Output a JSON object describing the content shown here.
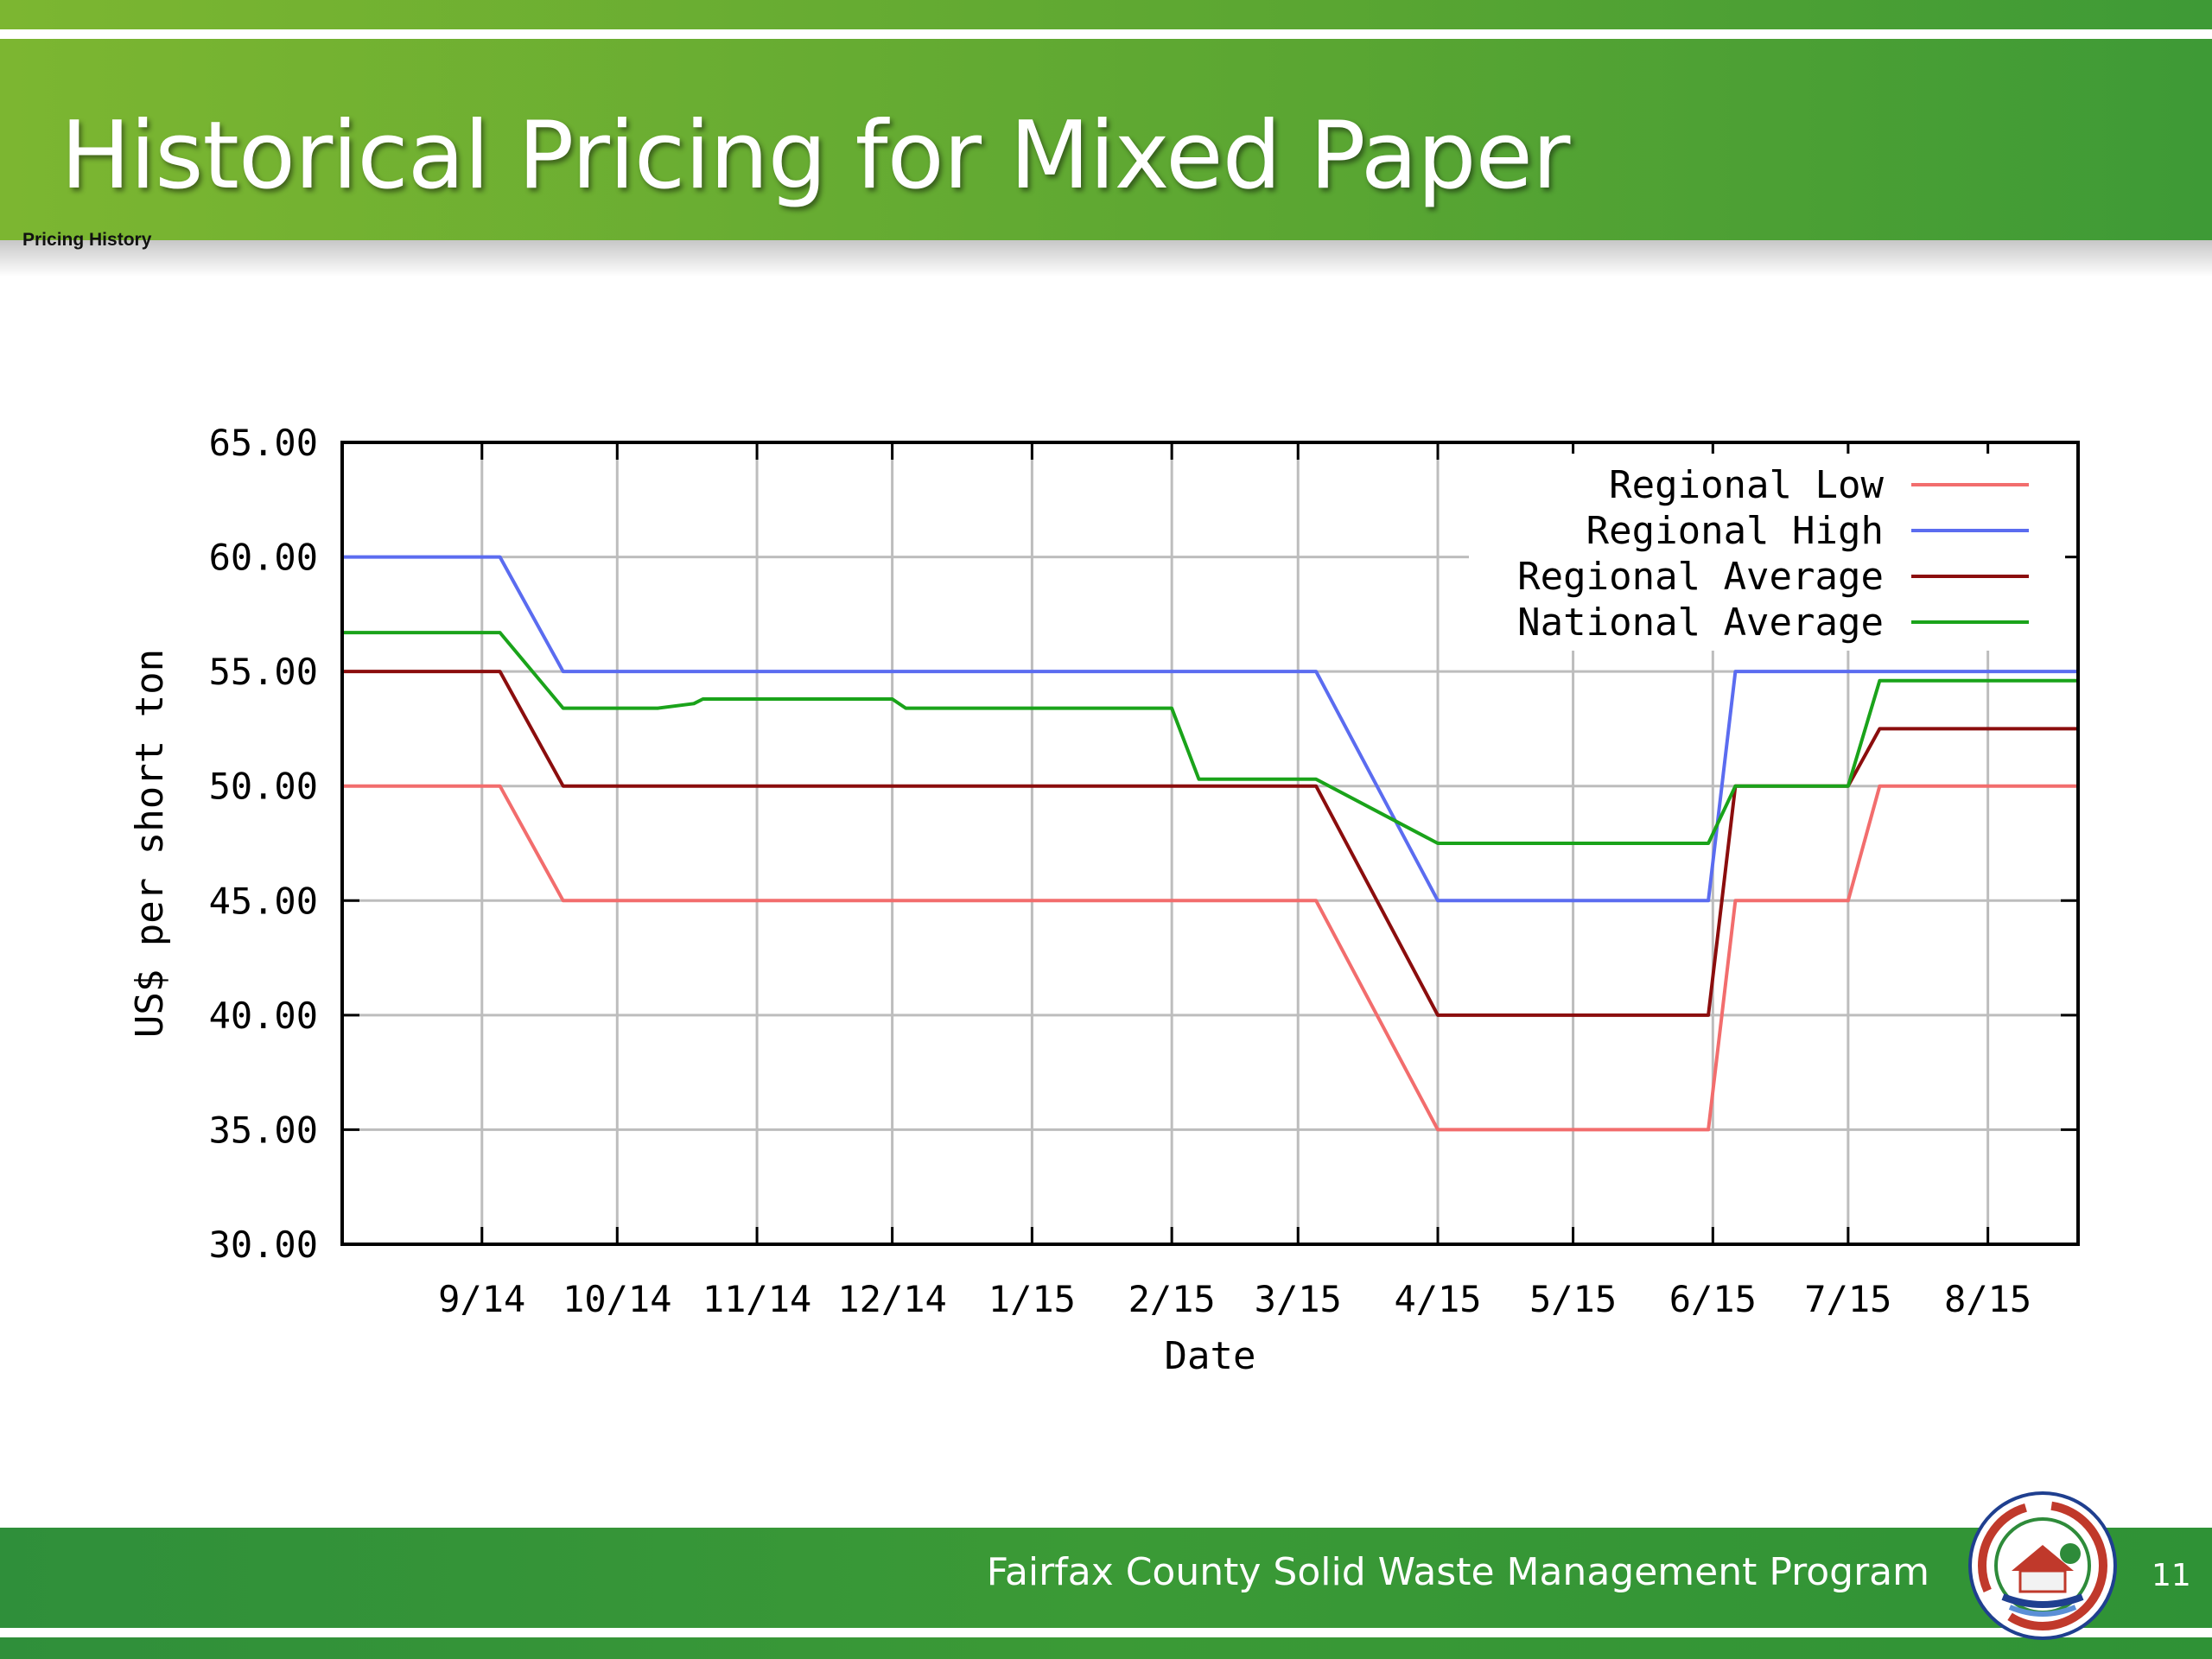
{
  "slide": {
    "title": "Historical Pricing for Mixed Paper",
    "sub_label": "Pricing History",
    "footer_text": "Fairfax County Solid Waste Management Program",
    "page_number": "11",
    "logo_icon": "fairfax-county-seal-icon",
    "colors": {
      "header_green": "#5aa632",
      "footer_green": "#3b9a36"
    }
  },
  "chart_data": {
    "type": "line",
    "title": "",
    "xlabel": "Date",
    "ylabel": "US$ per short ton",
    "ylim": [
      30,
      65
    ],
    "yticks": [
      "30.00",
      "35.00",
      "40.00",
      "45.00",
      "50.00",
      "55.00",
      "60.00",
      "65.00"
    ],
    "xlim": [
      "2014-08-01",
      "2015-08-21"
    ],
    "xticks": [
      {
        "label": "9/14",
        "date": "2014-09-01"
      },
      {
        "label": "10/14",
        "date": "2014-10-01"
      },
      {
        "label": "11/14",
        "date": "2014-11-01"
      },
      {
        "label": "12/14",
        "date": "2014-12-01"
      },
      {
        "label": "1/15",
        "date": "2015-01-01"
      },
      {
        "label": "2/15",
        "date": "2015-02-01"
      },
      {
        "label": "3/15",
        "date": "2015-03-01"
      },
      {
        "label": "4/15",
        "date": "2015-04-01"
      },
      {
        "label": "5/15",
        "date": "2015-05-01"
      },
      {
        "label": "6/15",
        "date": "2015-06-01"
      },
      {
        "label": "7/15",
        "date": "2015-07-01"
      },
      {
        "label": "8/15",
        "date": "2015-08-01"
      }
    ],
    "grid": true,
    "legend": "top-right",
    "series": [
      {
        "name": "Regional Low",
        "color": "#f26d6d",
        "points": [
          [
            "2014-08-01",
            50
          ],
          [
            "2014-09-05",
            50
          ],
          [
            "2014-09-19",
            45
          ],
          [
            "2015-03-05",
            45
          ],
          [
            "2015-04-01",
            35
          ],
          [
            "2015-05-31",
            35
          ],
          [
            "2015-06-06",
            45
          ],
          [
            "2015-07-01",
            45
          ],
          [
            "2015-07-08",
            50
          ],
          [
            "2015-08-21",
            50
          ]
        ]
      },
      {
        "name": "Regional High",
        "color": "#5b6cf0",
        "points": [
          [
            "2014-08-01",
            60
          ],
          [
            "2014-09-05",
            60
          ],
          [
            "2014-09-19",
            55
          ],
          [
            "2015-03-05",
            55
          ],
          [
            "2015-04-01",
            45
          ],
          [
            "2015-05-31",
            45
          ],
          [
            "2015-06-06",
            55
          ],
          [
            "2015-08-21",
            55
          ]
        ]
      },
      {
        "name": "Regional Average",
        "color": "#8b0d0d",
        "points": [
          [
            "2014-08-01",
            55
          ],
          [
            "2014-09-05",
            55
          ],
          [
            "2014-09-19",
            50
          ],
          [
            "2015-03-05",
            50
          ],
          [
            "2015-04-01",
            40
          ],
          [
            "2015-05-31",
            40
          ],
          [
            "2015-06-06",
            50
          ],
          [
            "2015-07-01",
            50
          ],
          [
            "2015-07-08",
            52.5
          ],
          [
            "2015-08-21",
            52.5
          ]
        ]
      },
      {
        "name": "National Average",
        "color": "#1aa31a",
        "points": [
          [
            "2014-08-01",
            56.7
          ],
          [
            "2014-09-05",
            56.7
          ],
          [
            "2014-09-19",
            53.4
          ],
          [
            "2014-10-10",
            53.4
          ],
          [
            "2014-10-18",
            53.6
          ],
          [
            "2014-10-20",
            53.8
          ],
          [
            "2014-12-01",
            53.8
          ],
          [
            "2014-12-04",
            53.4
          ],
          [
            "2015-02-01",
            53.4
          ],
          [
            "2015-02-07",
            50.3
          ],
          [
            "2015-03-05",
            50.3
          ],
          [
            "2015-04-01",
            47.5
          ],
          [
            "2015-05-31",
            47.5
          ],
          [
            "2015-06-06",
            50
          ],
          [
            "2015-07-01",
            50
          ],
          [
            "2015-07-08",
            54.6
          ],
          [
            "2015-08-21",
            54.6
          ]
        ]
      }
    ]
  }
}
